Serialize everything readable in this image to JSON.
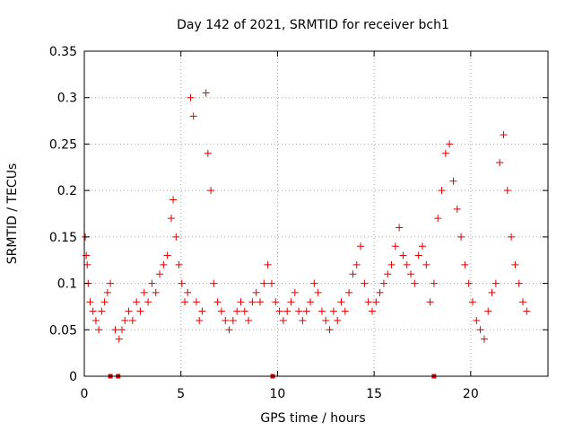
{
  "chart_data": {
    "type": "scatter",
    "title": "Day 142 of 2021, SRMTID for receiver bch1",
    "xlabel": "GPS time / hours",
    "ylabel": "SRMTID / TECUs",
    "xlim": [
      0,
      24
    ],
    "ylim": [
      0,
      0.35
    ],
    "xticks": [
      0,
      5,
      10,
      15,
      20
    ],
    "yticks": [
      0,
      0.05,
      0.1,
      0.15,
      0.2,
      0.25,
      0.3,
      0.35
    ],
    "xtick_labels": [
      "0",
      "5",
      "10",
      "15",
      "20"
    ],
    "ytick_labels": [
      "0",
      "0.05",
      "0.1",
      "0.15",
      "0.2",
      "0.25",
      "0.3",
      "0.35"
    ],
    "grid": true,
    "marker": "+",
    "color": "#e00000",
    "series": [
      {
        "name": "SRMTID",
        "x": [
          0.05,
          0.1,
          0.15,
          0.2,
          0.3,
          0.45,
          0.6,
          0.75,
          0.9,
          1.05,
          1.2,
          1.35,
          1.6,
          1.8,
          1.95,
          2.1,
          2.3,
          2.5,
          2.7,
          2.9,
          3.1,
          3.3,
          3.5,
          3.7,
          3.9,
          4.1,
          4.3,
          4.5,
          4.6,
          4.75,
          4.9,
          5.05,
          5.2,
          5.35,
          5.5,
          5.65,
          5.8,
          5.95,
          6.1,
          6.3,
          6.4,
          6.55,
          6.7,
          6.9,
          7.1,
          7.3,
          7.5,
          7.7,
          7.9,
          8.1,
          8.3,
          8.5,
          8.7,
          8.9,
          9.1,
          9.3,
          9.5,
          9.7,
          9.9,
          10.1,
          10.3,
          10.5,
          10.7,
          10.9,
          11.1,
          11.3,
          11.5,
          11.7,
          11.9,
          12.1,
          12.3,
          12.5,
          12.7,
          12.9,
          13.1,
          13.3,
          13.5,
          13.7,
          13.9,
          14.1,
          14.3,
          14.5,
          14.7,
          14.9,
          15.1,
          15.3,
          15.5,
          15.7,
          15.9,
          16.1,
          16.3,
          16.5,
          16.7,
          16.9,
          17.1,
          17.3,
          17.5,
          17.7,
          17.9,
          18.1,
          18.3,
          18.5,
          18.7,
          18.9,
          19.1,
          19.3,
          19.5,
          19.7,
          19.9,
          20.1,
          20.3,
          20.5,
          20.7,
          20.9,
          21.1,
          21.3,
          21.5,
          21.7,
          21.9,
          22.1,
          22.3,
          22.5,
          22.7,
          22.9
        ],
        "y": [
          0.15,
          0.13,
          0.12,
          0.1,
          0.08,
          0.07,
          0.06,
          0.05,
          0.07,
          0.08,
          0.09,
          0.1,
          0.05,
          0.04,
          0.05,
          0.06,
          0.07,
          0.06,
          0.08,
          0.07,
          0.09,
          0.08,
          0.1,
          0.09,
          0.11,
          0.12,
          0.13,
          0.17,
          0.19,
          0.15,
          0.12,
          0.1,
          0.08,
          0.09,
          0.3,
          0.28,
          0.08,
          0.06,
          0.07,
          0.305,
          0.24,
          0.2,
          0.1,
          0.08,
          0.07,
          0.06,
          0.05,
          0.06,
          0.07,
          0.08,
          0.07,
          0.06,
          0.08,
          0.09,
          0.08,
          0.1,
          0.12,
          0.1,
          0.08,
          0.07,
          0.06,
          0.07,
          0.08,
          0.09,
          0.07,
          0.06,
          0.07,
          0.08,
          0.1,
          0.09,
          0.07,
          0.06,
          0.05,
          0.07,
          0.06,
          0.08,
          0.07,
          0.09,
          0.11,
          0.12,
          0.14,
          0.1,
          0.08,
          0.07,
          0.08,
          0.09,
          0.1,
          0.11,
          0.12,
          0.14,
          0.16,
          0.13,
          0.12,
          0.11,
          0.1,
          0.13,
          0.14,
          0.12,
          0.08,
          0.1,
          0.17,
          0.2,
          0.24,
          0.25,
          0.21,
          0.18,
          0.15,
          0.12,
          0.1,
          0.08,
          0.06,
          0.05,
          0.04,
          0.07,
          0.09,
          0.1,
          0.23,
          0.26,
          0.2,
          0.15,
          0.12,
          0.1,
          0.08,
          0.07
        ]
      }
    ],
    "data_gap_markers_x": [
      1.35,
      1.75,
      9.75,
      18.1
    ]
  }
}
